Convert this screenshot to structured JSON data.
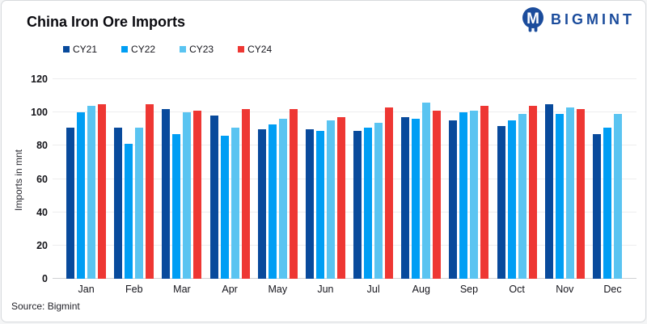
{
  "header": {
    "title": "China Iron Ore Imports",
    "logo": {
      "text": "BIGMINT",
      "color": "#1b4c9c"
    }
  },
  "footer": {
    "source": "Source: Bigmint"
  },
  "chart_data": {
    "type": "bar",
    "title": "China Iron Ore Imports",
    "xlabel": "",
    "ylabel": "Imports in mnt",
    "ylim": [
      0,
      120
    ],
    "yticks": [
      0,
      20,
      40,
      60,
      80,
      100,
      120
    ],
    "grid": true,
    "legend_position": "top-left",
    "categories": [
      "Jan",
      "Feb",
      "Mar",
      "Apr",
      "May",
      "Jun",
      "Jul",
      "Aug",
      "Sep",
      "Oct",
      "Nov",
      "Dec"
    ],
    "series": [
      {
        "name": "CY21",
        "color": "#084a9c",
        "values": [
          91,
          91,
          102,
          98,
          90,
          90,
          89,
          97,
          95,
          92,
          105,
          87
        ]
      },
      {
        "name": "CY22",
        "color": "#009ef4",
        "values": [
          100,
          81,
          87,
          86,
          93,
          89,
          91,
          96,
          100,
          95,
          99,
          91
        ]
      },
      {
        "name": "CY23",
        "color": "#5ac4f1",
        "values": [
          104,
          91,
          100,
          91,
          96,
          95,
          94,
          106,
          101,
          99,
          103,
          99
        ]
      },
      {
        "name": "CY24",
        "color": "#ee3733",
        "values": [
          105,
          105,
          101,
          102,
          102,
          97,
          103,
          101,
          104,
          104,
          102,
          null
        ]
      }
    ]
  }
}
